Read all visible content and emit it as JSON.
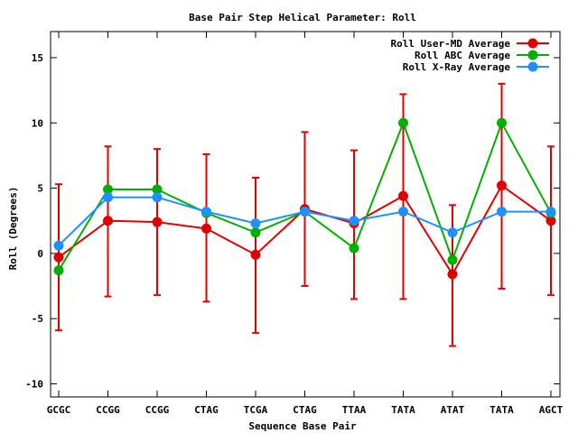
{
  "chart_data": {
    "type": "line",
    "title": "Base Pair Step Helical Parameter: Roll",
    "xlabel": "Sequence Base Pair",
    "ylabel": "Roll (Degrees)",
    "categories": [
      "GCGC",
      "CCGG",
      "CCGG",
      "CTAG",
      "TCGA",
      "CTAG",
      "TTAA",
      "TATA",
      "ATAT",
      "TATA",
      "AGCT"
    ],
    "ylim": [
      -11,
      17
    ],
    "yticks": [
      -10,
      -5,
      0,
      5,
      10,
      15
    ],
    "grid": false,
    "legend_position": "top-right",
    "series": [
      {
        "name": "Roll User-MD Average",
        "color": "#e00000",
        "values": [
          -0.3,
          2.5,
          2.4,
          1.9,
          -0.1,
          3.4,
          2.3,
          4.4,
          -1.6,
          5.2,
          2.5
        ],
        "error_low": [
          -5.9,
          -3.3,
          -3.2,
          -3.7,
          -6.1,
          -2.5,
          -3.5,
          -3.5,
          -7.1,
          -2.7,
          -3.2
        ],
        "error_high": [
          5.3,
          8.2,
          8.0,
          7.6,
          5.8,
          9.3,
          7.9,
          12.2,
          3.7,
          13.0,
          8.2
        ]
      },
      {
        "name": "Roll ABC Average",
        "color": "#00b000",
        "values": [
          -1.3,
          4.9,
          4.9,
          3.1,
          1.6,
          3.2,
          0.4,
          10.0,
          -0.5,
          10.0,
          3.1
        ]
      },
      {
        "name": "Roll X-Ray Average",
        "color": "#1e90ff",
        "values": [
          0.6,
          4.3,
          4.3,
          3.2,
          2.3,
          3.2,
          2.5,
          3.2,
          1.6,
          3.2,
          3.2
        ]
      }
    ]
  }
}
